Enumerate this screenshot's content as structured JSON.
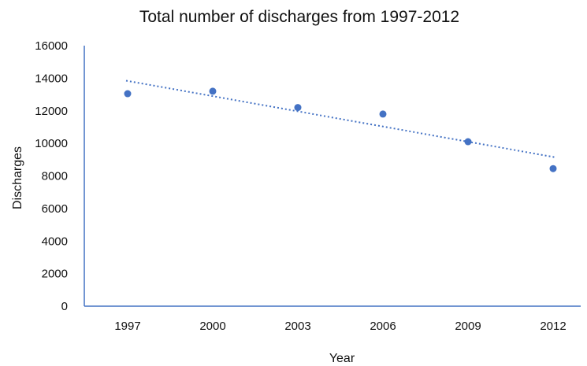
{
  "chart_data": {
    "type": "scatter",
    "title": "Total number of discharges from 1997-2012",
    "xlabel": "Year",
    "ylabel": "Discharges",
    "x": [
      "1997",
      "2000",
      "2003",
      "2006",
      "2009",
      "2012"
    ],
    "y": [
      13050,
      13200,
      12200,
      11800,
      10100,
      8450
    ],
    "ylim": [
      0,
      16000
    ],
    "yticks": [
      0,
      2000,
      4000,
      6000,
      8000,
      10000,
      12000,
      14000,
      16000
    ],
    "trendline": {
      "type": "linear",
      "style": "dotted",
      "start": 13850,
      "end": 9150
    },
    "grid": false,
    "legend": "none",
    "colors": {
      "marker": "#4472C4",
      "axis": "#4472C4",
      "trendline": "#4472C4"
    }
  }
}
